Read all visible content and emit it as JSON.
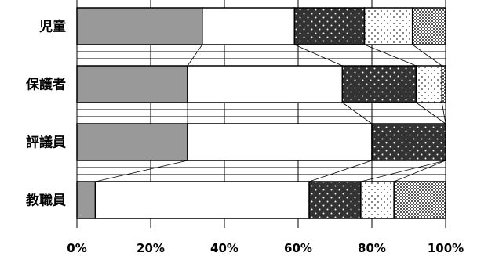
{
  "chart_data": {
    "type": "bar",
    "orientation": "horizontal",
    "stacked": "percent",
    "categories": [
      "児童",
      "保護者",
      "評議員",
      "教職員"
    ],
    "series": [
      {
        "values": [
          34,
          30,
          30,
          5
        ],
        "color": "#999999",
        "pattern": "solid"
      },
      {
        "values": [
          25,
          42,
          50,
          58
        ],
        "color": "#ffffff",
        "pattern": "solid"
      },
      {
        "values": [
          19,
          20,
          20,
          14
        ],
        "color": "#333333",
        "pattern": "dots-light"
      },
      {
        "values": [
          13,
          7,
          0,
          9
        ],
        "color": "#ffffff",
        "pattern": "dots-dark"
      },
      {
        "values": [
          9,
          1,
          0,
          14
        ],
        "color": "#bbbbbb",
        "pattern": "checker"
      }
    ],
    "x_ticks": [
      "0%",
      "20%",
      "40%",
      "60%",
      "80%",
      "100%"
    ],
    "xlim": [
      0,
      100
    ],
    "grid": true,
    "series_lines": true,
    "legend": "none"
  }
}
